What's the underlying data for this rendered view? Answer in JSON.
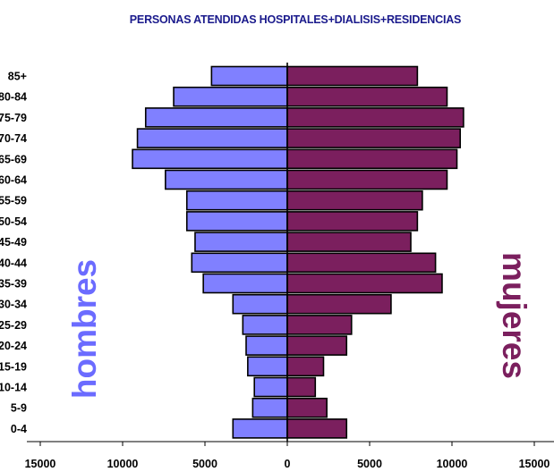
{
  "colors": {
    "men": "#8080ff",
    "women": "#7b1f5e",
    "title": "#1a1a8c",
    "men_label": "#6b6bff",
    "women_label": "#7b1f5e"
  },
  "labels": {
    "men": "hombres",
    "women": "mujeres"
  },
  "chart_data": {
    "type": "bar",
    "orientation": "horizontal-population-pyramid",
    "title": "PERSONAS ATENDIDAS HOSPITALES+DIALISIS+RESIDENCIAS",
    "categories": [
      "85+",
      "80-84",
      "75-79",
      "70-74",
      "65-69",
      "60-64",
      "55-59",
      "50-54",
      "45-49",
      "40-44",
      "35-39",
      "30-34",
      "25-29",
      "20-24",
      "15-19",
      "10-14",
      "5-9",
      "0-4"
    ],
    "series": [
      {
        "name": "hombres",
        "values": [
          4600,
          6900,
          8600,
          9100,
          9400,
          7400,
          6100,
          6100,
          5600,
          5800,
          5100,
          3300,
          2700,
          2500,
          2400,
          2000,
          2100,
          3300
        ]
      },
      {
        "name": "mujeres",
        "values": [
          7900,
          9700,
          10700,
          10500,
          10300,
          9700,
          8200,
          7900,
          7500,
          9000,
          9400,
          6300,
          3900,
          3600,
          2200,
          1700,
          2400,
          3600
        ]
      }
    ],
    "xlim": [
      -15000,
      15000
    ],
    "xticks": [
      -15000,
      -10000,
      -5000,
      0,
      5000,
      10000,
      15000
    ],
    "xtick_labels": [
      "15000",
      "10000",
      "5000",
      "0",
      "5000",
      "10000",
      "15000"
    ],
    "grid": false
  }
}
